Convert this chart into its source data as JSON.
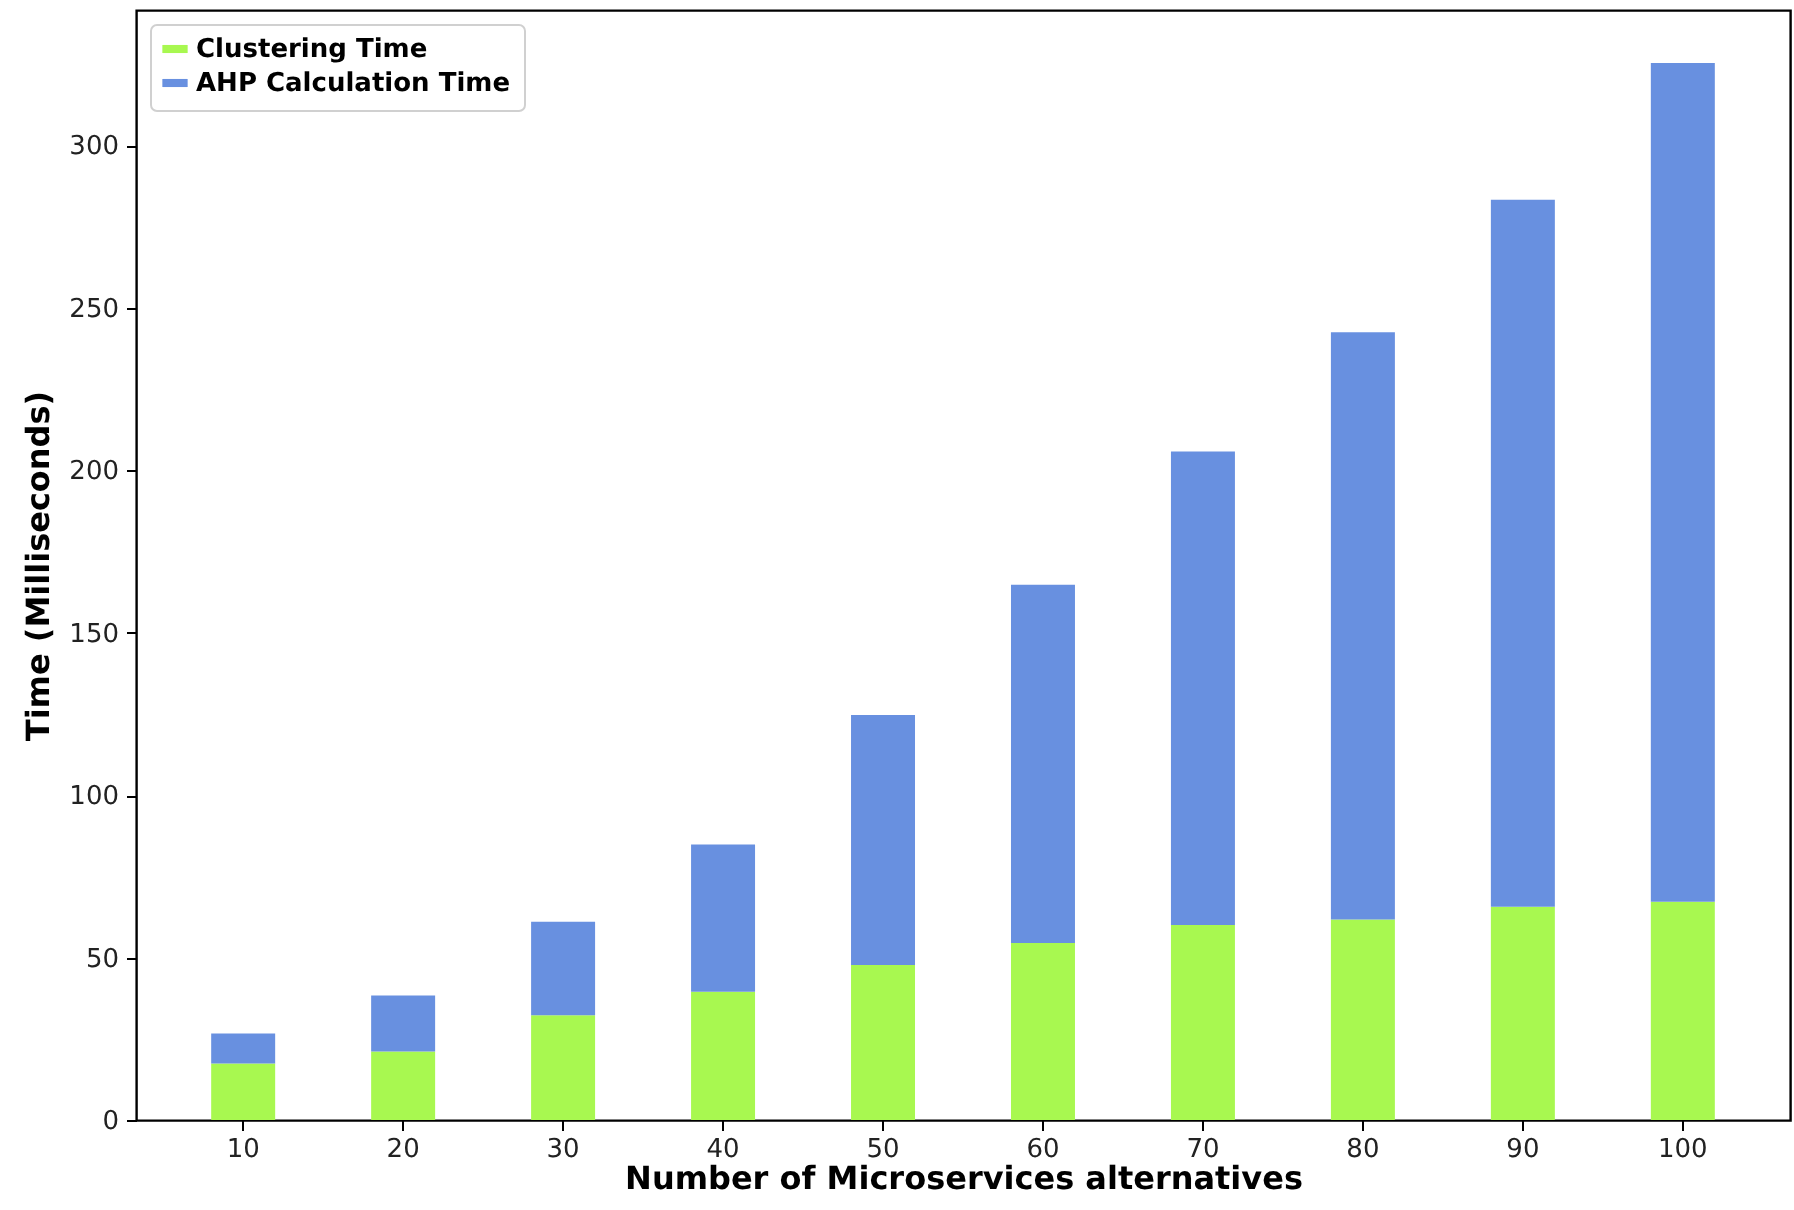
{
  "chart_data": {
    "type": "bar",
    "stacked": true,
    "categories": [
      "10",
      "20",
      "30",
      "40",
      "50",
      "60",
      "70",
      "80",
      "90",
      "100"
    ],
    "series": [
      {
        "name": "Clustering Time",
        "color": "#a8f850",
        "values": [
          17.4,
          21.1,
          32.2,
          39.5,
          47.7,
          54.5,
          60.0,
          61.7,
          65.6,
          67.2
        ]
      },
      {
        "name": "AHP Calculation Time",
        "color": "#6890e0",
        "values": [
          9.2,
          17.2,
          28.8,
          45.3,
          76.9,
          110.2,
          145.7,
          180.7,
          217.6,
          258.1
        ]
      }
    ],
    "xlabel": "Number of Microservices alternatives",
    "ylabel": "Time (Milliseconds)",
    "ylim": [
      0,
      341.6
    ],
    "yticks": [
      0,
      50,
      100,
      150,
      200,
      250,
      300
    ],
    "legend": "top left"
  }
}
